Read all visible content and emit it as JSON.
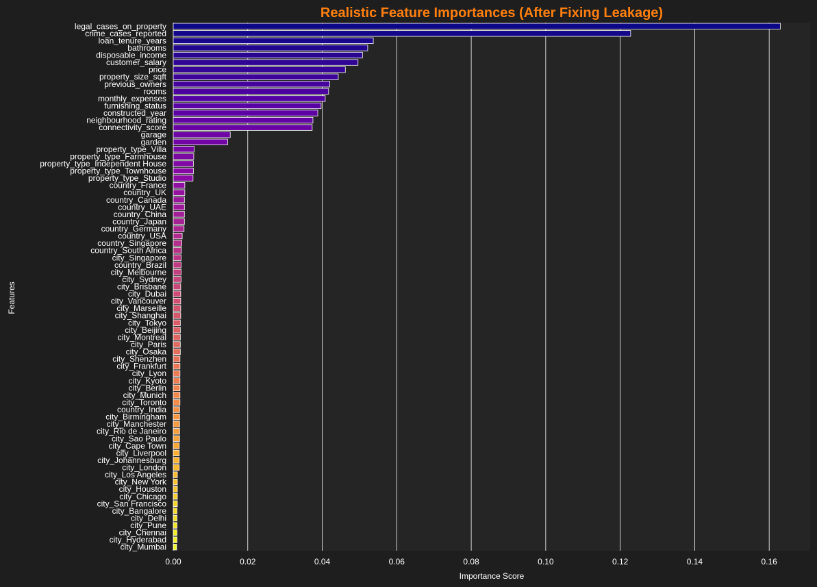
{
  "chart_data": {
    "type": "bar",
    "orientation": "horizontal",
    "title": "Realistic Feature Importances (After Fixing Leakage)",
    "xlabel": "Importance Score",
    "ylabel": "Features",
    "xlim": [
      0,
      0.171
    ],
    "xticks": [
      0.0,
      0.02,
      0.04,
      0.06,
      0.08,
      0.1,
      0.12,
      0.14,
      0.16
    ],
    "xtick_labels": [
      "0.00",
      "0.02",
      "0.04",
      "0.06",
      "0.08",
      "0.10",
      "0.12",
      "0.14",
      "0.16"
    ],
    "grid": true,
    "colors": {
      "background": "#1e1e1e",
      "plot_background": "#252525",
      "grid": "#ffffff",
      "title": "#ff7f0e",
      "text": "#ffffff",
      "palette": "plasma"
    },
    "categories": [
      "legal_cases_on_property",
      "crime_cases_reported",
      "loan_tenure_years",
      "bathrooms",
      "disposable_income",
      "customer_salary",
      "price",
      "property_size_sqft",
      "previous_owners",
      "rooms",
      "monthly_expenses",
      "furnishing_status",
      "constructed_year",
      "neighbourhood_rating",
      "connectivity_score",
      "garage",
      "garden",
      "property_type_Villa",
      "property_type_Farmhouse",
      "property_type_Independent House",
      "property_type_Townhouse",
      "property_type_Studio",
      "country_France",
      "country_UK",
      "country_Canada",
      "country_UAE",
      "country_China",
      "country_Japan",
      "country_Germany",
      "country_USA",
      "country_Singapore",
      "country_South Africa",
      "city_Singapore",
      "country_Brazil",
      "city_Melbourne",
      "city_Sydney",
      "city_Brisbane",
      "city_Dubai",
      "city_Vancouver",
      "city_Marseille",
      "city_Shanghai",
      "city_Tokyo",
      "city_Beijing",
      "city_Montreal",
      "city_Paris",
      "city_Osaka",
      "city_Shenzhen",
      "city_Frankfurt",
      "city_Lyon",
      "city_Kyoto",
      "city_Berlin",
      "city_Munich",
      "city_Toronto",
      "country_India",
      "city_Birmingham",
      "city_Manchester",
      "city_Rio de Janeiro",
      "city_Sao Paulo",
      "city_Cape Town",
      "city_Liverpool",
      "city_Johannesburg",
      "city_London",
      "city_Los Angeles",
      "city_New York",
      "city_Houston",
      "city_Chicago",
      "city_San Francisco",
      "city_Bangalore",
      "city_Delhi",
      "city_Pune",
      "city_Chennai",
      "city_Hyderabad",
      "city_Mumbai"
    ],
    "values": [
      0.163,
      0.1228,
      0.0537,
      0.0522,
      0.0508,
      0.0496,
      0.0462,
      0.0443,
      0.042,
      0.0417,
      0.0408,
      0.0397,
      0.0388,
      0.0375,
      0.0373,
      0.0153,
      0.0146,
      0.0056,
      0.0055,
      0.0054,
      0.0054,
      0.0053,
      0.0031,
      0.0031,
      0.003,
      0.003,
      0.003,
      0.003,
      0.0029,
      0.0024,
      0.0023,
      0.0022,
      0.0021,
      0.0021,
      0.0021,
      0.0021,
      0.002,
      0.002,
      0.002,
      0.002,
      0.002,
      0.0019,
      0.0019,
      0.0019,
      0.0019,
      0.0019,
      0.0018,
      0.0018,
      0.0018,
      0.0018,
      0.0018,
      0.0018,
      0.0018,
      0.0017,
      0.0017,
      0.0017,
      0.0017,
      0.0017,
      0.0016,
      0.0016,
      0.0016,
      0.0016,
      0.0011,
      0.0011,
      0.0011,
      0.0011,
      0.0011,
      0.001,
      0.001,
      0.001,
      0.001,
      0.001,
      0.0009
    ]
  }
}
